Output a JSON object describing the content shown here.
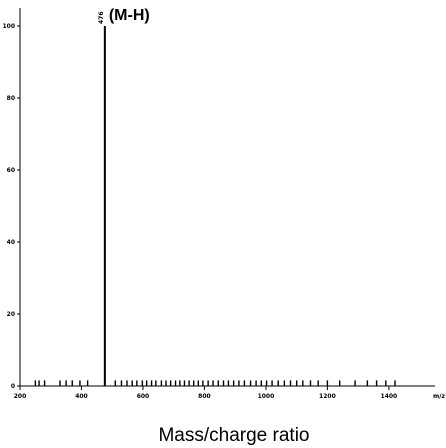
{
  "chart_data": {
    "type": "bar",
    "title": "",
    "xlabel": "Mass/charge ratio",
    "ylabel": "",
    "xlim": [
      200,
      1550
    ],
    "ylim": [
      0,
      105
    ],
    "grid": false,
    "x_ticks": [
      200,
      400,
      600,
      800,
      1000,
      1200,
      1400
    ],
    "x_tick_labels": [
      "200",
      "400",
      "600",
      "800",
      "1000",
      "1200",
      "1400"
    ],
    "x_axis_end_label": "m/z",
    "y_ticks": [
      0,
      20,
      40,
      60,
      80,
      100
    ],
    "y_tick_labels": [
      "0",
      "20",
      "40",
      "60",
      "80",
      "100"
    ],
    "annotations": [
      {
        "text": "(M-H)",
        "mz_label": "476",
        "x": 476,
        "y": 100
      }
    ],
    "series": [
      {
        "x": [
          250,
          262,
          280,
          330,
          350,
          370,
          395,
          420,
          476,
          510,
          530,
          548,
          565,
          580,
          598,
          612,
          628,
          642,
          660,
          675,
          690,
          706,
          720,
          735,
          750,
          765,
          780,
          795,
          812,
          828,
          845,
          862,
          878,
          895,
          912,
          930,
          950,
          968,
          985,
          1002,
          1020,
          1040,
          1060,
          1080,
          1100,
          1120,
          1145,
          1170,
          1200,
          1240,
          1290,
          1330,
          1360,
          1390,
          1420
        ],
        "values": [
          1,
          1,
          1,
          1,
          1,
          1,
          1,
          1,
          100,
          1,
          1,
          1,
          1,
          1,
          1,
          1,
          1,
          1,
          1,
          1,
          1,
          1,
          1,
          1,
          1,
          1,
          1,
          1,
          1,
          1,
          1,
          1,
          1,
          1,
          1,
          1,
          1,
          1,
          1,
          1,
          1,
          1,
          1,
          1,
          1,
          1,
          1,
          1,
          1,
          1,
          1,
          1,
          1,
          1,
          1
        ]
      }
    ]
  }
}
